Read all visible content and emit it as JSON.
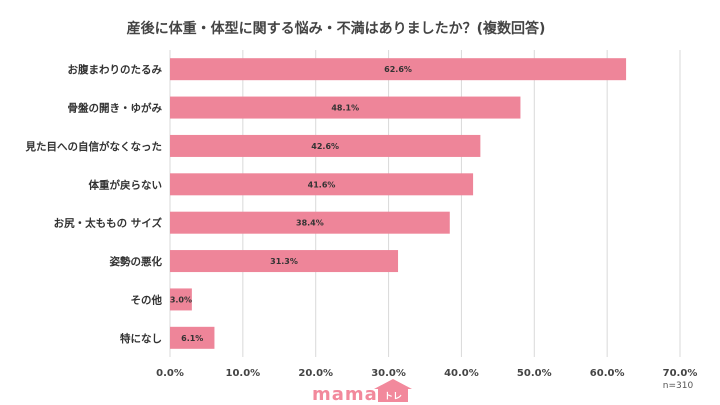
{
  "chart_data": {
    "type": "bar",
    "orientation": "horizontal",
    "title": "産後に体重・体型に関する悩み・不満はありましたか？(複数回答)",
    "categories": [
      "お腹まわりのたるみ",
      "骨盤の開き・ゆがみ",
      "見た目への自信がなくなった",
      "体重が戻らない",
      "お尻・太ももの サイズ",
      "姿勢の悪化",
      "その他",
      "特になし"
    ],
    "values": [
      62.6,
      48.1,
      42.6,
      41.6,
      38.4,
      31.3,
      3.0,
      6.1
    ],
    "value_labels": [
      "62.6%",
      "48.1%",
      "42.6%",
      "41.6%",
      "38.4%",
      "31.3%",
      "3.0%",
      "6.1%"
    ],
    "xlim": [
      0,
      70
    ],
    "x_ticks": [
      0,
      10,
      20,
      30,
      40,
      50,
      60,
      70
    ],
    "x_tick_labels": [
      "0.0%",
      "10.0%",
      "20.0%",
      "30.0%",
      "40.0%",
      "50.0%",
      "60.0%",
      "70.0%"
    ],
    "grid": true,
    "bar_color": "#ee8599",
    "sample_note": "n=310"
  },
  "logo": {
    "text": "mama",
    "accent_text": "トレ",
    "color": "#f2899c"
  }
}
